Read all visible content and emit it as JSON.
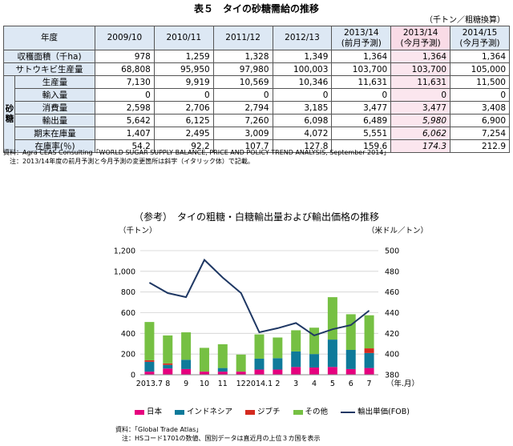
{
  "table": {
    "title": "表５　タイの砂糖需給の推移",
    "unit": "（千トン／粗糖換算）",
    "headers": [
      "年度",
      "2009/10",
      "2010/11",
      "2011/12",
      "2012/13",
      "2013/14\n(前月予測)",
      "2013/14\n(今月予測)",
      "2014/15\n(今月予測)"
    ],
    "group_label": "砂糖",
    "rows": [
      {
        "label": "収穫面積（千ha)",
        "values": [
          "978",
          "1,259",
          "1,328",
          "1,349",
          "1,364",
          "1,364",
          "1,364"
        ]
      },
      {
        "label": "サトウキビ生産量",
        "values": [
          "68,808",
          "95,950",
          "97,980",
          "100,003",
          "103,700",
          "103,700",
          "105,000"
        ]
      },
      {
        "label": "生産量",
        "values": [
          "7,130",
          "9,919",
          "10,569",
          "10,346",
          "11,631",
          "11,631",
          "11,500"
        ]
      },
      {
        "label": "輸入量",
        "values": [
          "0",
          "0",
          "0",
          "0",
          "0",
          "0",
          "0"
        ]
      },
      {
        "label": "消費量",
        "values": [
          "2,598",
          "2,706",
          "2,794",
          "3,185",
          "3,477",
          "3,477",
          "3,408"
        ]
      },
      {
        "label": "輸出量",
        "values": [
          "5,642",
          "6,125",
          "7,260",
          "6,098",
          "6,489",
          "5,980",
          "6,900"
        ],
        "italic_col": 5
      },
      {
        "label": "期末在庫量",
        "values": [
          "1,407",
          "2,495",
          "3,009",
          "4,072",
          "5,551",
          "6,062",
          "7,254"
        ],
        "italic_col": 5
      },
      {
        "label": "在庫率(％)",
        "values": [
          "54.2",
          "92.2",
          "107.7",
          "127.8",
          "159.6",
          "174.3",
          "212.9"
        ],
        "italic_col": 5
      }
    ],
    "note1": "資料：Agra CEAS Consulting「WORLD SUGAR SUPPLY BALANCE, PRICE AND POLICY TREND ANALYSIS, September 2014」",
    "note2": "　注：2013/14年度の前月予測と今月予測の変更箇所は斜字（イタリック体）で記載。"
  },
  "chart": {
    "title": "（参考）　タイの粗糖・白糖輸出量および輸出価格の推移",
    "note1": "資料：「Global Trade Atlas」",
    "note2": "　注：HSコード1701の数値、国別データは直近月の上位３カ国を表示"
  },
  "chart_data": {
    "type": "bar",
    "title": "（参考）　タイの粗糖・白糖輸出量および輸出価格の推移",
    "categories": [
      "2013.7",
      "8",
      "9",
      "10",
      "11",
      "12",
      "2014.1",
      "2",
      "3",
      "4",
      "5",
      "6",
      "7"
    ],
    "xlabel": "（年.月）",
    "ylabel": "（千トン）",
    "ylabel_right": "（米ドル／トン）",
    "ylim": [
      0,
      1200
    ],
    "yticks": [
      "0",
      "200",
      "400",
      "600",
      "800",
      "1,000",
      "1,200"
    ],
    "ylim_right": [
      380,
      500
    ],
    "yticks_right": [
      "380",
      "400",
      "420",
      "440",
      "460",
      "480",
      "500"
    ],
    "grid": true,
    "legend_position": "bottom",
    "stacked": true,
    "series": [
      {
        "name": "日本",
        "color": "#e6007e",
        "values": [
          30,
          60,
          55,
          30,
          30,
          30,
          50,
          50,
          75,
          70,
          75,
          55,
          65
        ]
      },
      {
        "name": "インドネシア",
        "color": "#0e7a9a",
        "values": [
          95,
          35,
          90,
          0,
          35,
          0,
          105,
          110,
          150,
          130,
          265,
          185,
          145
        ]
      },
      {
        "name": "ジブチ",
        "color": "#d42a1f",
        "values": [
          15,
          15,
          0,
          0,
          0,
          0,
          0,
          0,
          0,
          0,
          0,
          0,
          45
        ]
      },
      {
        "name": "その他",
        "color": "#76c043",
        "values": [
          370,
          270,
          265,
          230,
          230,
          165,
          235,
          200,
          205,
          255,
          410,
          345,
          320
        ]
      }
    ],
    "line": {
      "name": "輸出単価(FOB)",
      "color": "#1f3864",
      "axis": "right",
      "values": [
        469,
        459,
        455,
        491,
        474,
        459,
        421,
        425,
        430,
        418,
        424,
        428,
        442
      ]
    }
  }
}
